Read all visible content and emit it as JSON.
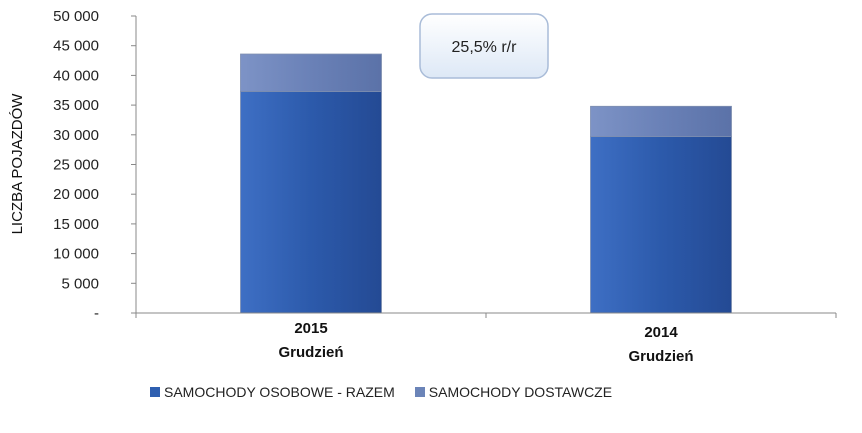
{
  "chart_data": {
    "type": "bar",
    "stacked": true,
    "ylabel": "LICZBA POJAZDÓW",
    "ylim": [
      0,
      50000
    ],
    "yticks": [
      "-",
      "5 000",
      "10 000",
      "15 000",
      "20 000",
      "25 000",
      "30 000",
      "35 000",
      "40 000",
      "45 000",
      "50 000"
    ],
    "categories": [
      {
        "year": "2015",
        "label": "Grudzień"
      },
      {
        "year": "2014",
        "label": "Grudzień"
      }
    ],
    "series": [
      {
        "name": "SAMOCHODY OSOBOWE - RAZEM",
        "values": [
          37300,
          29700
        ],
        "color": "#2f5fb0"
      },
      {
        "name": "SAMOCHODY DOSTAWCZE",
        "values": [
          6300,
          5100
        ],
        "color": "#6b84b8"
      }
    ],
    "annotation": "25,5% r/r",
    "grid": false,
    "legend_position": "bottom"
  }
}
